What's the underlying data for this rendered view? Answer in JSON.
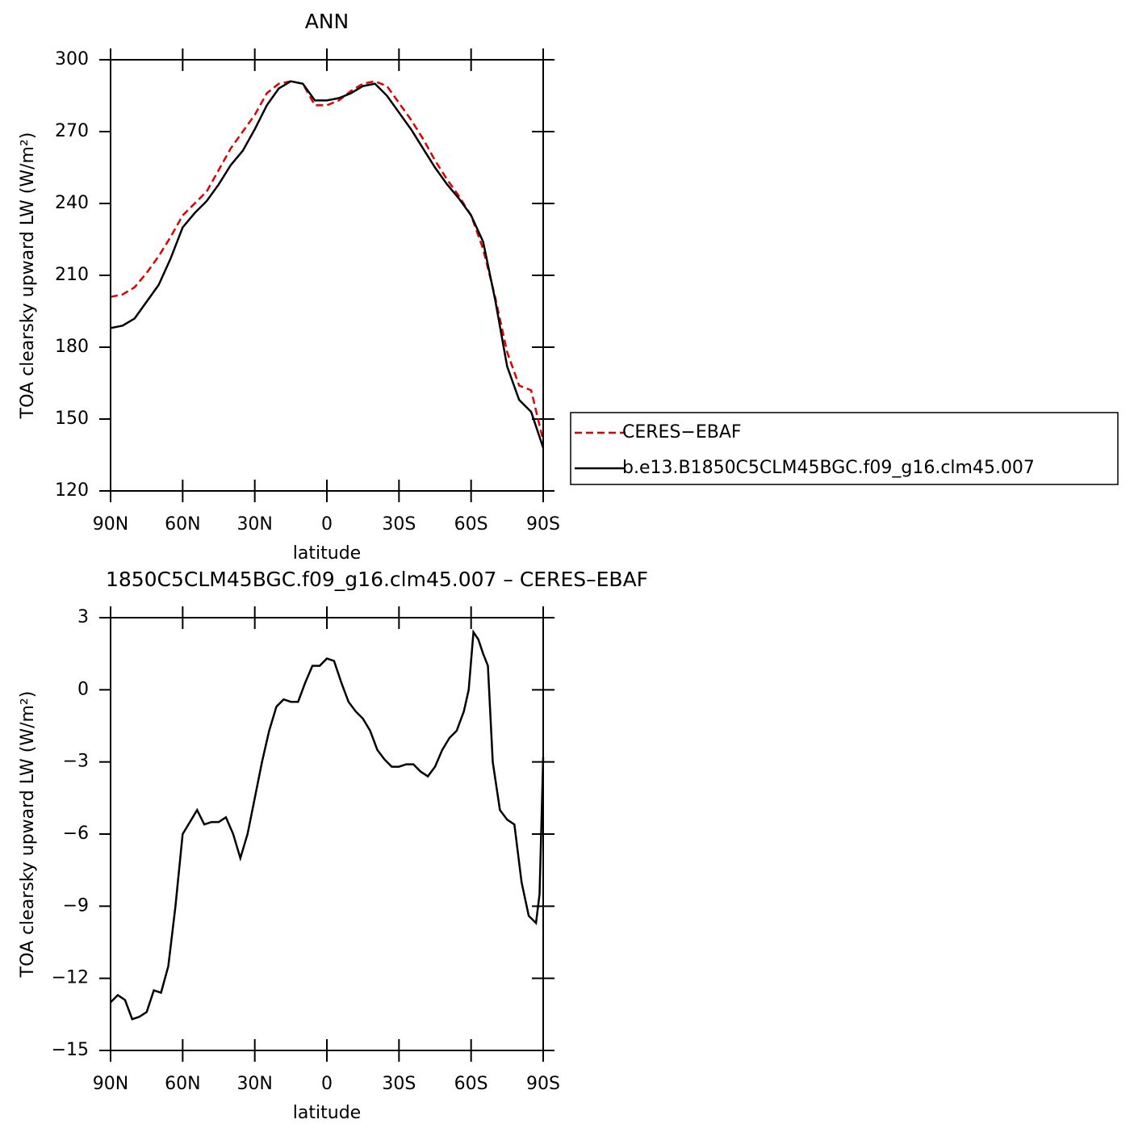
{
  "chart_data": [
    {
      "type": "line",
      "title": "ANN",
      "x_label": "latitude",
      "y_label": "TOA clearsky upward LW (W/m²)",
      "x": [
        90,
        85,
        80,
        75,
        70,
        65,
        60,
        55,
        50,
        45,
        40,
        35,
        30,
        25,
        20,
        15,
        10,
        5,
        0,
        -5,
        -10,
        -15,
        -20,
        -25,
        -30,
        -35,
        -40,
        -45,
        -50,
        -55,
        -60,
        -65,
        -70,
        -75,
        -80,
        -85,
        -90
      ],
      "series": [
        {
          "name": "CERES−EBAF",
          "color": "#e00000",
          "dashed": true,
          "values": [
            201,
            202,
            205,
            211,
            218,
            226,
            235,
            240,
            245,
            254,
            263,
            270,
            277,
            286,
            290,
            291,
            290,
            281,
            281,
            283,
            287,
            290,
            291,
            289,
            282,
            275,
            267,
            258,
            250,
            243,
            235,
            221,
            201,
            178,
            164,
            162,
            141
          ]
        },
        {
          "name": "b.e13.B1850C5CLM45BGC.f09_g16.clm45.007",
          "color": "#000000",
          "dashed": false,
          "values": [
            188,
            189,
            192,
            199,
            206,
            217,
            230,
            236,
            241,
            248,
            256,
            262,
            271,
            281,
            288,
            291,
            290,
            283,
            283,
            284,
            286,
            289,
            290,
            285,
            278,
            271,
            263,
            255,
            248,
            242,
            235,
            224,
            200,
            172,
            158,
            153,
            138
          ]
        }
      ],
      "xlim": [
        90,
        -90
      ],
      "xticks": [
        {
          "value": 90,
          "label": "90N"
        },
        {
          "value": 60,
          "label": "60N"
        },
        {
          "value": 30,
          "label": "30N"
        },
        0,
        {
          "value": -30,
          "label": "30S"
        },
        {
          "value": -60,
          "label": "60S"
        },
        {
          "value": -90,
          "label": "90S"
        }
      ],
      "ylim": [
        120,
        300
      ],
      "yticks": [
        120,
        150,
        180,
        210,
        240,
        270,
        300
      ],
      "legend": "right"
    },
    {
      "type": "line",
      "title": "1850C5CLM45BGC.f09_g16.clm45.007 – CERES–EBAF",
      "x_label": "latitude",
      "y_label": "TOA clearsky upward LW (W/m²)",
      "x": [
        90,
        87,
        84,
        81,
        78,
        75,
        72,
        69,
        66,
        63,
        60,
        57,
        54,
        51,
        48,
        45,
        42,
        39,
        36,
        33,
        30,
        27,
        24,
        21,
        18,
        15,
        12,
        9,
        6,
        3,
        0,
        -3,
        -6,
        -9,
        -12,
        -15,
        -18,
        -21,
        -24,
        -27,
        -30,
        -33,
        -36,
        -39,
        -42,
        -45,
        -48,
        -51,
        -54,
        -57,
        -59,
        -61,
        -63,
        -65,
        -67,
        -69,
        -72,
        -75,
        -78,
        -81,
        -84,
        -87,
        -88.5,
        -90
      ],
      "values": [
        -13.0,
        -12.7,
        -12.9,
        -13.7,
        -13.6,
        -13.4,
        -12.5,
        -12.6,
        -11.5,
        -9.0,
        -6.0,
        -5.5,
        -5.0,
        -5.6,
        -5.5,
        -5.5,
        -5.3,
        -6.0,
        -7.0,
        -6.0,
        -4.5,
        -3.0,
        -1.7,
        -0.7,
        -0.4,
        -0.5,
        -0.5,
        0.3,
        1.0,
        1.0,
        1.3,
        1.2,
        0.3,
        -0.5,
        -0.9,
        -1.2,
        -1.7,
        -2.5,
        -2.9,
        -3.2,
        -3.2,
        -3.1,
        -3.1,
        -3.4,
        -3.6,
        -3.2,
        -2.5,
        -2.0,
        -1.7,
        -0.9,
        0.0,
        2.4,
        2.1,
        1.5,
        1.0,
        -3.0,
        -5.0,
        -5.4,
        -5.6,
        -8.0,
        -9.4,
        -9.7,
        -8.5,
        -2.8
      ],
      "color": "#000000",
      "xlim": [
        90,
        -90
      ],
      "xticks": [
        {
          "value": 90,
          "label": "90N"
        },
        {
          "value": 60,
          "label": "60N"
        },
        {
          "value": 30,
          "label": "30N"
        },
        0,
        {
          "value": -30,
          "label": "30S"
        },
        {
          "value": -60,
          "label": "60S"
        },
        {
          "value": -90,
          "label": "90S"
        }
      ],
      "ylim": [
        -15,
        3
      ],
      "yticks": [
        {
          "value": -15,
          "label": "−15"
        },
        {
          "value": -12,
          "label": "−12"
        },
        {
          "value": -9,
          "label": "−9"
        },
        {
          "value": -6,
          "label": "−6"
        },
        {
          "value": -3,
          "label": "−3"
        },
        0,
        3
      ]
    }
  ]
}
